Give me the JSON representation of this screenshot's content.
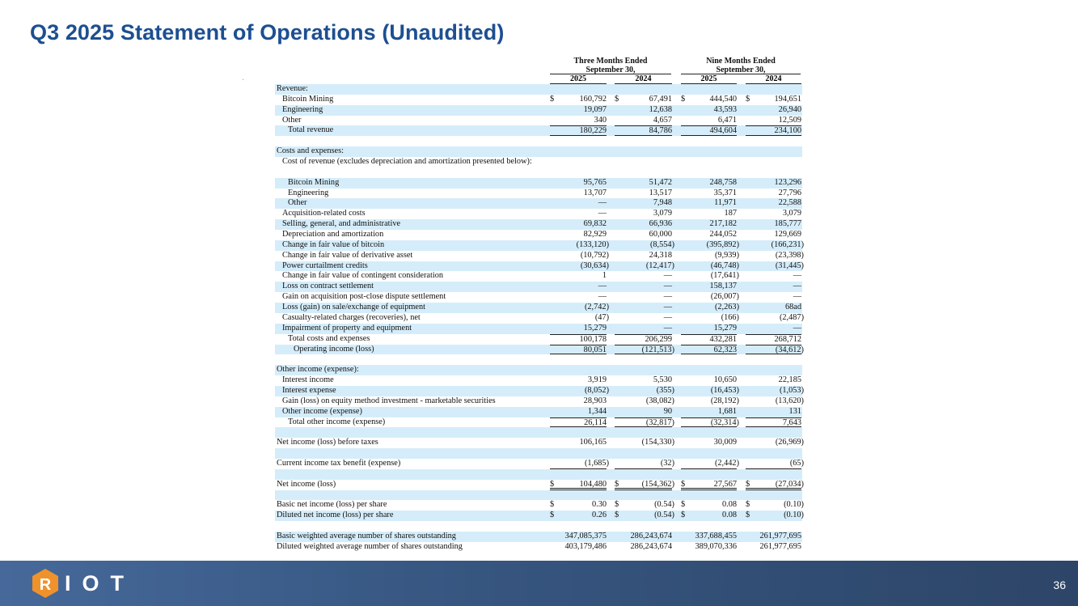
{
  "title": "Q3 2025 Statement of Operations (Unaudited)",
  "header": {
    "three_months": "Three Months Ended",
    "nine_months": "Nine Months Ended",
    "period_end": "September 30,",
    "years": [
      "2025",
      "2024",
      "2025",
      "2024"
    ]
  },
  "rows": [
    {
      "label": "Revenue:",
      "indent": 0,
      "values": []
    },
    {
      "label": "Bitcoin Mining",
      "indent": 1,
      "dollar": true,
      "values": [
        "160,792",
        "67,491",
        "444,540",
        "194,651"
      ]
    },
    {
      "label": "Engineering",
      "indent": 1,
      "values": [
        "19,097",
        "12,638",
        "43,593",
        "26,940"
      ]
    },
    {
      "label": "Other",
      "indent": 1,
      "values": [
        "340",
        "4,657",
        "6,471",
        "12,509"
      ]
    },
    {
      "label": "Total revenue",
      "indent": 2,
      "values": [
        "180,229",
        "84,786",
        "494,604",
        "234,100"
      ]
    },
    {
      "label": "",
      "values": []
    },
    {
      "label": "Costs and expenses:",
      "indent": 0,
      "values": []
    },
    {
      "label": "Cost of revenue (excludes depreciation and amortization presented below):",
      "indent": 1,
      "values": []
    },
    {
      "label": "Bitcoin Mining",
      "indent": 2,
      "values": [
        "95,765",
        "51,472",
        "248,758",
        "123,296"
      ]
    },
    {
      "label": "Engineering",
      "indent": 2,
      "values": [
        "13,707",
        "13,517",
        "35,371",
        "27,796"
      ]
    },
    {
      "label": "Other",
      "indent": 2,
      "values": [
        "—",
        "7,948",
        "11,971",
        "22,588"
      ]
    },
    {
      "label": "Acquisition-related costs",
      "indent": 1,
      "values": [
        "—",
        "3,079",
        "187",
        "3,079"
      ]
    },
    {
      "label": "Selling, general, and administrative",
      "indent": 1,
      "values": [
        "69,832",
        "66,936",
        "217,182",
        "185,777"
      ]
    },
    {
      "label": "Depreciation and amortization",
      "indent": 1,
      "values": [
        "82,929",
        "60,000",
        "244,052",
        "129,669"
      ]
    },
    {
      "label": "Change in fair value of bitcoin",
      "indent": 1,
      "values": [
        "(133,120)",
        "(8,554)",
        "(395,892)",
        "(166,231)"
      ]
    },
    {
      "label": "Change in fair value of derivative asset",
      "indent": 1,
      "values": [
        "(10,792)",
        "24,318",
        "(9,939)",
        "(23,398)"
      ]
    },
    {
      "label": "Power curtailment credits",
      "indent": 1,
      "values": [
        "(30,634)",
        "(12,417)",
        "(46,748)",
        "(31,445)"
      ]
    },
    {
      "label": "Change in fair value of contingent consideration",
      "indent": 1,
      "values": [
        "1",
        "—",
        "(17,641)",
        "—"
      ]
    },
    {
      "label": "Loss on contract settlement",
      "indent": 1,
      "values": [
        "—",
        "—",
        "158,137",
        "—"
      ]
    },
    {
      "label": "Gain on acquisition post-close dispute settlement",
      "indent": 1,
      "values": [
        "—",
        "—",
        "(26,007)",
        "—"
      ]
    },
    {
      "label": "Loss (gain) on sale/exchange of equipment",
      "indent": 1,
      "values": [
        "(2,742)",
        "—",
        "(2,263)",
        "68ad"
      ]
    },
    {
      "label": "Casualty-related charges (recoveries), net",
      "indent": 1,
      "values": [
        "(47)",
        "—",
        "(166)",
        "(2,487)"
      ]
    },
    {
      "label": "Impairment of property and equipment",
      "indent": 1,
      "values": [
        "15,279",
        "—",
        "15,279",
        "—"
      ]
    },
    {
      "label": "Total costs and expenses",
      "indent": 2,
      "values": [
        "100,178",
        "206,299",
        "432,281",
        "268,712"
      ]
    },
    {
      "label": "Operating income (loss)",
      "indent": 3,
      "values": [
        "80,051",
        "(121,513)",
        "62,323",
        "(34,612)"
      ]
    },
    {
      "label": "",
      "values": []
    },
    {
      "label": "Other income (expense):",
      "indent": 0,
      "values": []
    },
    {
      "label": "Interest income",
      "indent": 1,
      "values": [
        "3,919",
        "5,530",
        "10,650",
        "22,185"
      ]
    },
    {
      "label": "Interest expense",
      "indent": 1,
      "values": [
        "(8,052)",
        "(355)",
        "(16,453)",
        "(1,053)"
      ]
    },
    {
      "label": "Gain (loss) on equity method investment - marketable securities",
      "indent": 1,
      "values": [
        "28,903",
        "(38,082)",
        "(28,192)",
        "(13,620)"
      ]
    },
    {
      "label": "Other income (expense)",
      "indent": 1,
      "values": [
        "1,344",
        "90",
        "1,681",
        "131"
      ]
    },
    {
      "label": "Total other income (expense)",
      "indent": 2,
      "values": [
        "26,114",
        "(32,817)",
        "(32,314)",
        "7,643"
      ]
    },
    {
      "label": "",
      "values": []
    },
    {
      "label": "Net income (loss) before taxes",
      "indent": 0,
      "values": [
        "106,165",
        "(154,330)",
        "30,009",
        "(26,969)"
      ]
    },
    {
      "label": "",
      "values": []
    },
    {
      "label": "Current income tax benefit (expense)",
      "indent": 0,
      "values": [
        "(1,685)",
        "(32)",
        "(2,442)",
        "(65)"
      ]
    },
    {
      "label": "",
      "values": []
    },
    {
      "label": "Net income (loss)",
      "indent": 0,
      "dollar": true,
      "values": [
        "104,480",
        "(154,362)",
        "27,567",
        "(27,034)"
      ]
    },
    {
      "label": "",
      "values": []
    },
    {
      "label": "Basic net income (loss) per share",
      "indent": 0,
      "dollar": true,
      "values": [
        "0.30",
        "(0.54)",
        "0.08",
        "(0.10)"
      ]
    },
    {
      "label": "Diluted net income (loss) per share",
      "indent": 0,
      "dollar": true,
      "values": [
        "0.26",
        "(0.54)",
        "0.08",
        "(0.10)"
      ]
    },
    {
      "label": "",
      "values": []
    },
    {
      "label": "Basic weighted average number of shares outstanding",
      "indent": 0,
      "values": [
        "347,085,375",
        "286,243,674",
        "337,688,455",
        "261,977,695"
      ]
    },
    {
      "label": "Diluted weighted average number of shares outstanding",
      "indent": 0,
      "values": [
        "403,179,486",
        "286,243,674",
        "389,070,336",
        "261,977,695"
      ]
    }
  ],
  "currency_symbol": "$",
  "footer": {
    "logo_text": "RIOT",
    "logo_letters": "IOT",
    "page_number": "36",
    "brand_orange": "#f0922b",
    "bar_color": "#36557f"
  }
}
